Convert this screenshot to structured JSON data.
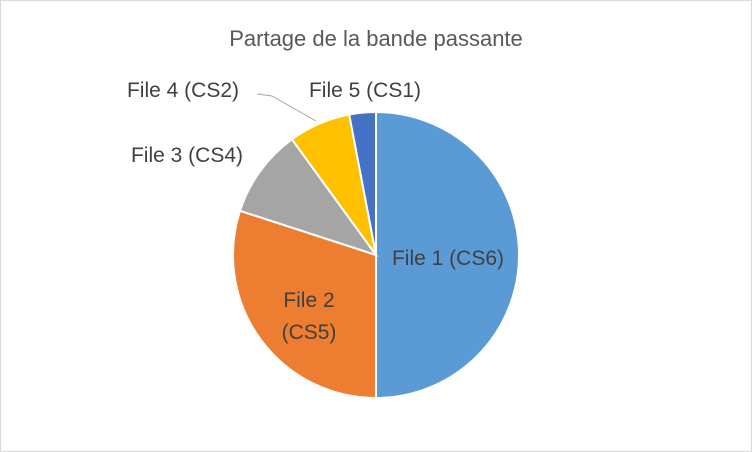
{
  "chart_data": {
    "type": "pie",
    "title": "Partage de la bande passante",
    "slices": [
      {
        "label": "File 1 (CS6)",
        "value": 50,
        "color": "#5B9BD5"
      },
      {
        "label": "File 2 (CS5)",
        "value": 30,
        "color": "#ED7D31"
      },
      {
        "label": "File 3 (CS4)",
        "value": 10,
        "color": "#A5A5A5"
      },
      {
        "label": "File 4 (CS2)",
        "value": 7,
        "color": "#FFC000"
      },
      {
        "label": "File 5 (CS1)",
        "value": 3,
        "color": "#4472C4"
      }
    ],
    "legend": "none",
    "data_labels": "category name"
  }
}
